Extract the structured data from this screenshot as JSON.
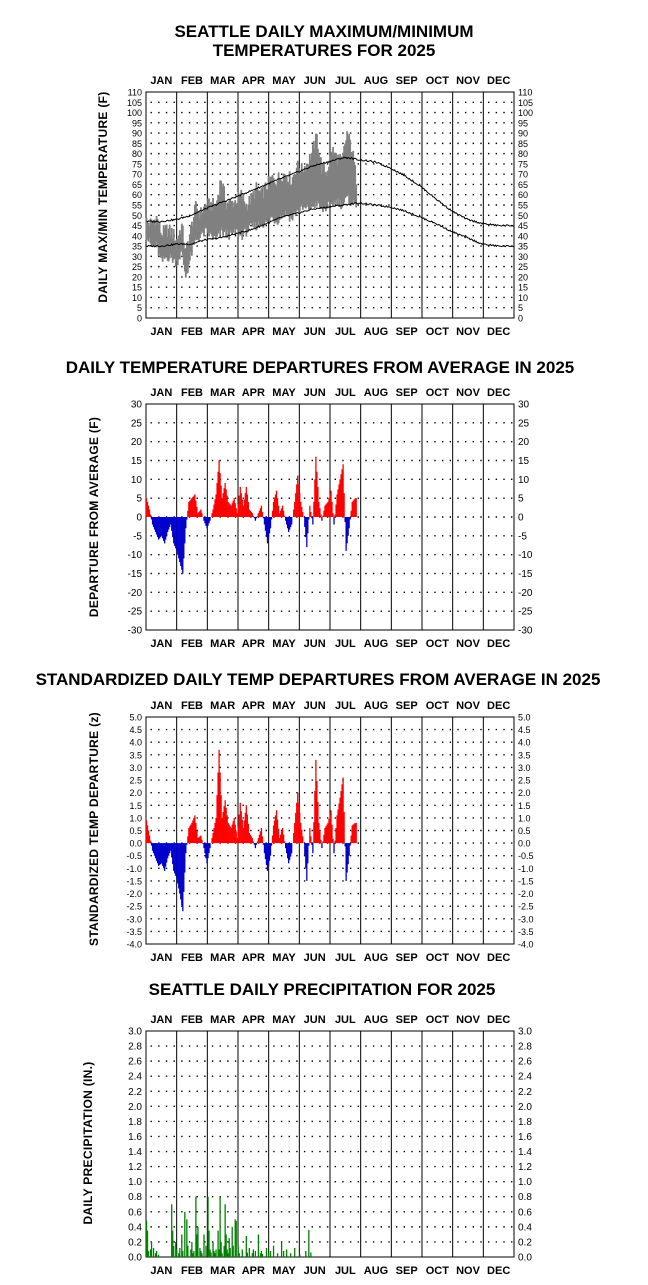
{
  "months": [
    "JAN",
    "FEB",
    "MAR",
    "APR",
    "MAY",
    "JUN",
    "JUL",
    "AUG",
    "SEP",
    "OCT",
    "NOV",
    "DEC"
  ],
  "colors": {
    "observed_temp": "#808080",
    "normal_lines": "#000000",
    "above_average": "#ff0000",
    "below_average": "#0000cc",
    "precipitation": "#008000"
  },
  "panels": {
    "temp": {
      "title_line1": "SEATTLE DAILY MAXIMUM/MINIMUM",
      "title_line2": "TEMPERATURES FOR 2025",
      "ylabel": "DAILY MAX/MIN TEMPERATURE (F)"
    },
    "dep": {
      "title": "DAILY TEMPERATURE DEPARTURES FROM AVERAGE IN 2025",
      "ylabel": "DEPARTURE FROM AVERAGE (F)"
    },
    "std": {
      "title": "STANDARDIZED DAILY TEMP DEPARTURES FROM AVERAGE IN 2025",
      "ylabel": "STANDARDIZED TEMP DEPARTURE (z)"
    },
    "precip": {
      "title": "SEATTLE DAILY PRECIPITATION FOR 2025",
      "ylabel": "DAILY PRECIPITATION (IN.)"
    }
  },
  "chart_data": [
    {
      "type": "line",
      "title": "SEATTLE DAILY MAXIMUM/MINIMUM TEMPERATURES FOR 2025",
      "ylabel": "DAILY MAX/MIN TEMPERATURE (F)",
      "ylim": [
        0,
        110
      ],
      "yticks": [
        "110",
        "105",
        "100",
        "95",
        "90",
        "85",
        "80",
        "75",
        "70",
        "65",
        "60",
        "55",
        "50",
        "45",
        "40",
        "35",
        "30",
        "25",
        "20",
        "15",
        "10",
        "5",
        "0"
      ],
      "grid": true,
      "x_unit": "day of year",
      "series": [
        {
          "name": "",
          "style": "normal high",
          "x": [
            1,
            15,
            31,
            45,
            59,
            74,
            90,
            105,
            120,
            135,
            151,
            166,
            181,
            196,
            201,
            212,
            227,
            243,
            258,
            273,
            288,
            304,
            319,
            334,
            350,
            365
          ],
          "values": [
            47,
            47,
            48,
            50,
            53,
            56,
            59,
            62,
            65,
            68,
            71,
            74,
            76,
            78,
            78,
            77,
            76,
            73,
            69,
            64,
            58,
            52,
            48,
            46,
            45,
            45
          ]
        },
        {
          "name": "",
          "style": "normal low",
          "x": [
            1,
            15,
            31,
            45,
            59,
            74,
            90,
            105,
            120,
            135,
            151,
            166,
            181,
            196,
            212,
            227,
            243,
            258,
            273,
            288,
            304,
            319,
            334,
            350,
            365
          ],
          "values": [
            35,
            35,
            36,
            36,
            38,
            39,
            41,
            43,
            46,
            49,
            51,
            53,
            54,
            55,
            56,
            55,
            54,
            52,
            49,
            46,
            42,
            39,
            36,
            35,
            35
          ]
        },
        {
          "name": "",
          "style": "observed high",
          "x": [
            1,
            6,
            11,
            16,
            21,
            26,
            31,
            36,
            40,
            45,
            50,
            55,
            60,
            65,
            70,
            75,
            80,
            85,
            90,
            95,
            100,
            105,
            110,
            115,
            120,
            125,
            130,
            135,
            140,
            145,
            150,
            155,
            160,
            165,
            170,
            175,
            180,
            185,
            190,
            195,
            200,
            205,
            209
          ],
          "values": [
            47,
            46,
            49,
            41,
            43,
            42,
            38,
            45,
            32,
            43,
            54,
            51,
            55,
            55,
            55,
            68,
            56,
            56,
            57,
            60,
            55,
            58,
            63,
            60,
            64,
            68,
            67,
            70,
            70,
            67,
            74,
            72,
            75,
            80,
            88,
            73,
            71,
            82,
            78,
            76,
            90,
            82,
            68
          ]
        },
        {
          "name": "",
          "style": "observed low",
          "x": [
            1,
            6,
            11,
            16,
            21,
            26,
            31,
            36,
            40,
            45,
            50,
            55,
            60,
            65,
            70,
            75,
            80,
            85,
            90,
            95,
            100,
            105,
            110,
            115,
            120,
            125,
            130,
            135,
            140,
            145,
            150,
            155,
            160,
            165,
            170,
            175,
            180,
            185,
            190,
            195,
            200,
            205,
            209
          ],
          "values": [
            40,
            35,
            35,
            27,
            30,
            29,
            27,
            32,
            20,
            30,
            38,
            40,
            42,
            40,
            38,
            42,
            41,
            40,
            42,
            40,
            42,
            44,
            45,
            46,
            46,
            49,
            47,
            50,
            51,
            48,
            52,
            53,
            53,
            54,
            56,
            52,
            54,
            56,
            57,
            55,
            58,
            56,
            55
          ]
        }
      ]
    },
    {
      "type": "bar",
      "title": "DAILY TEMPERATURE DEPARTURES FROM AVERAGE IN 2025",
      "ylabel": "DEPARTURE FROM AVERAGE (F)",
      "ylim": [
        -30,
        30
      ],
      "yticks": [
        "30",
        "25",
        "20",
        "15",
        "10",
        "5",
        "0",
        "-5",
        "-10",
        "-15",
        "-20",
        "-25",
        "-30"
      ],
      "grid": true,
      "x_unit": "day of year",
      "x": [
        1,
        4,
        7,
        10,
        13,
        16,
        19,
        22,
        25,
        28,
        31,
        34,
        37,
        40,
        43,
        46,
        49,
        52,
        55,
        58,
        61,
        64,
        67,
        70,
        73,
        76,
        79,
        82,
        85,
        88,
        91,
        94,
        97,
        100,
        103,
        106,
        109,
        112,
        115,
        118,
        121,
        124,
        127,
        130,
        133,
        136,
        139,
        142,
        145,
        148,
        151,
        154,
        157,
        160,
        163,
        166,
        169,
        172,
        175,
        178,
        181,
        184,
        187,
        190,
        193,
        196,
        199,
        202,
        205,
        208
      ],
      "values": [
        5,
        2,
        -2,
        -4,
        -6,
        -5,
        -7,
        -4,
        -2,
        -7,
        -9,
        -12,
        -15,
        -3,
        4,
        5,
        6,
        1,
        2,
        -1,
        -3,
        -1,
        2,
        6,
        15,
        5,
        9,
        4,
        3,
        5,
        1,
        8,
        3,
        8,
        2,
        1,
        -1,
        1,
        3,
        -2,
        -7,
        -3,
        4,
        7,
        1,
        3,
        -1,
        -4,
        -2,
        4,
        11,
        4,
        0,
        -8,
        3,
        -2,
        16,
        4,
        -1,
        3,
        4,
        7,
        -2,
        6,
        10,
        14,
        -9,
        -3,
        4,
        5
      ]
    },
    {
      "type": "bar",
      "title": "STANDARDIZED DAILY TEMP DEPARTURES FROM AVERAGE IN 2025",
      "ylabel": "STANDARDIZED TEMP DEPARTURE (z)",
      "ylim": [
        -4,
        5
      ],
      "yticks": [
        "5.0",
        "4.5",
        "4.0",
        "3.5",
        "3.0",
        "2.5",
        "2.0",
        "1.5",
        "1.0",
        "0.5",
        "0.0",
        "-0.5",
        "-1.0",
        "-1.5",
        "-2.0",
        "-2.5",
        "-3.0",
        "-3.5",
        "-4.0"
      ],
      "grid": true,
      "x_unit": "day of year",
      "x": [
        1,
        4,
        7,
        10,
        13,
        16,
        19,
        22,
        25,
        28,
        31,
        34,
        37,
        40,
        43,
        46,
        49,
        52,
        55,
        58,
        61,
        64,
        67,
        70,
        73,
        76,
        79,
        82,
        85,
        88,
        91,
        94,
        97,
        100,
        103,
        106,
        109,
        112,
        115,
        118,
        121,
        124,
        127,
        130,
        133,
        136,
        139,
        142,
        145,
        148,
        151,
        154,
        157,
        160,
        163,
        166,
        169,
        172,
        175,
        178,
        181,
        184,
        187,
        190,
        193,
        196,
        199,
        202,
        205,
        208
      ],
      "values": [
        0.9,
        0.3,
        -0.3,
        -0.6,
        -0.9,
        -0.8,
        -1.1,
        -0.6,
        -0.3,
        -1.1,
        -1.4,
        -2.0,
        -2.7,
        -0.4,
        0.6,
        0.8,
        1.1,
        0.2,
        0.3,
        -0.2,
        -0.8,
        -0.2,
        0.4,
        1.0,
        3.7,
        1.0,
        1.7,
        0.8,
        0.6,
        1.0,
        0.2,
        1.6,
        0.6,
        1.5,
        0.4,
        0.2,
        -0.2,
        0.2,
        0.6,
        -0.4,
        -1.1,
        -0.5,
        0.7,
        1.3,
        0.2,
        0.6,
        -0.2,
        -0.8,
        -0.4,
        0.8,
        2.0,
        0.8,
        0.0,
        -1.5,
        0.6,
        -0.4,
        3.3,
        0.8,
        -0.2,
        0.6,
        0.8,
        1.3,
        -0.4,
        1.1,
        1.8,
        2.6,
        -1.5,
        -0.5,
        0.7,
        0.8
      ]
    },
    {
      "type": "bar",
      "title": "SEATTLE DAILY PRECIPITATION FOR 2025",
      "ylabel": "DAILY PRECIPITATION (IN.)",
      "ylim": [
        0,
        3
      ],
      "yticks": [
        "3.0",
        "2.8",
        "2.6",
        "2.4",
        "2.2",
        "2.0",
        "1.8",
        "1.6",
        "1.4",
        "1.2",
        "1.0",
        "0.8",
        "0.6",
        "0.4",
        "0.2",
        "0.0"
      ],
      "grid": true,
      "x_unit": "day of year",
      "x": [
        1,
        2,
        3,
        5,
        6,
        8,
        10,
        11,
        13,
        26,
        27,
        28,
        30,
        31,
        33,
        34,
        36,
        37,
        39,
        41,
        42,
        45,
        46,
        47,
        48,
        50,
        51,
        52,
        54,
        55,
        56,
        58,
        60,
        62,
        63,
        64,
        65,
        67,
        68,
        69,
        70,
        72,
        73,
        74,
        75,
        76,
        78,
        79,
        80,
        81,
        82,
        83,
        84,
        86,
        87,
        89,
        90,
        92,
        93,
        96,
        100,
        101,
        103,
        106,
        107,
        109,
        112,
        114,
        115,
        116,
        120,
        122,
        124,
        127,
        131,
        135,
        137,
        140,
        144,
        148,
        153,
        159,
        162,
        164
      ],
      "values": [
        0.48,
        0.35,
        0.08,
        0.1,
        0.2,
        0.12,
        0.05,
        0.08,
        0.03,
        0.7,
        0.35,
        0.15,
        0.2,
        0.1,
        0.05,
        0.12,
        0.3,
        0.08,
        0.6,
        0.5,
        0.15,
        0.1,
        0.2,
        0.05,
        0.08,
        0.8,
        0.3,
        0.4,
        0.12,
        0.08,
        0.05,
        0.3,
        0.15,
        0.8,
        0.35,
        0.1,
        0.06,
        0.2,
        0.08,
        0.05,
        0.1,
        0.35,
        0.1,
        0.8,
        0.2,
        0.05,
        0.15,
        0.7,
        0.3,
        0.1,
        0.05,
        0.25,
        0.12,
        0.4,
        0.15,
        0.5,
        0.48,
        0.15,
        0.05,
        0.1,
        0.28,
        0.06,
        0.12,
        0.05,
        0.1,
        0.08,
        0.3,
        0.05,
        0.08,
        0.04,
        0.12,
        0.05,
        0.08,
        0.15,
        0.05,
        0.2,
        0.08,
        0.1,
        0.05,
        0.12,
        0.04,
        0.08,
        0.36,
        0.06
      ]
    }
  ]
}
